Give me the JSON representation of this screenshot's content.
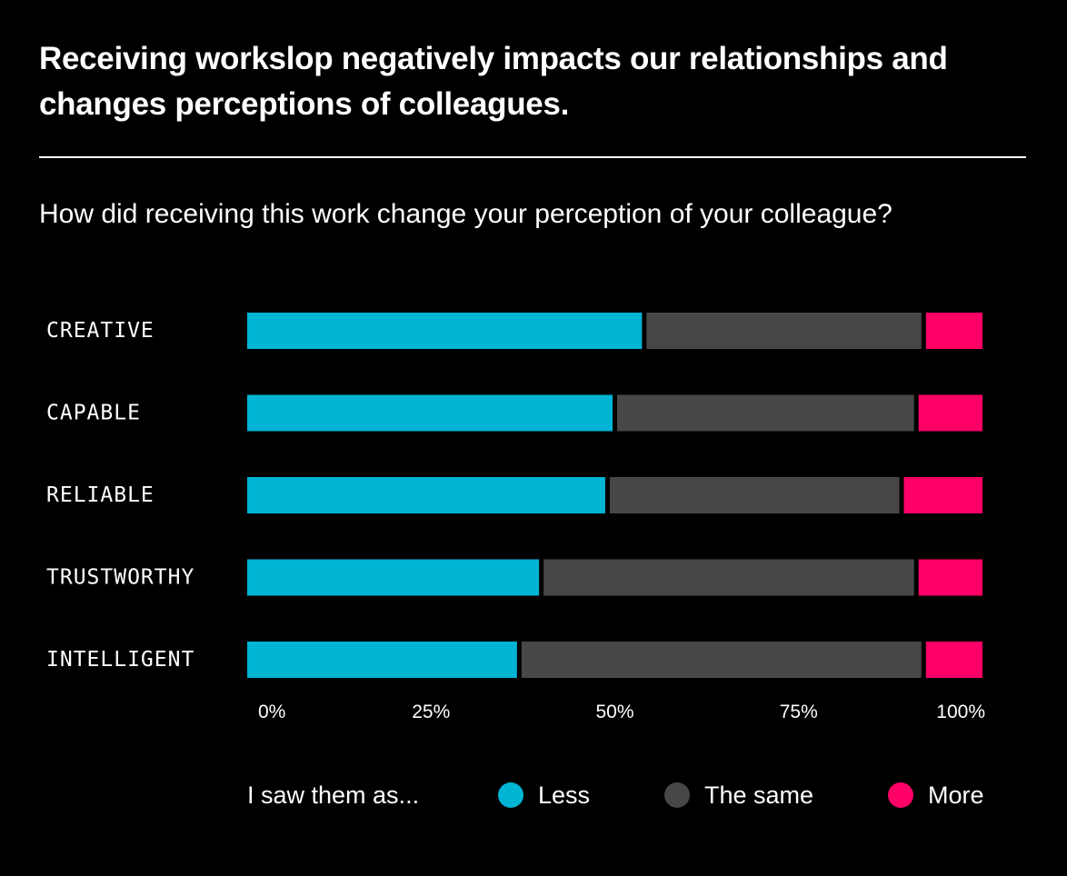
{
  "header": {
    "title": "Receiving workslop negatively impacts our relationships and changes perceptions of colleagues.",
    "subtitle": "How did receiving this work change your perception of your colleague?"
  },
  "legend": {
    "title": "I saw them as...",
    "items": [
      {
        "label": "Less",
        "color": "#00b4d4"
      },
      {
        "label": "The same",
        "color": "#474747"
      },
      {
        "label": "More",
        "color": "#ff0066"
      }
    ]
  },
  "chart_data": {
    "type": "bar",
    "orientation": "horizontal",
    "stacked": true,
    "title": "How did receiving this work change your perception of your colleague?",
    "xlabel": "",
    "ylabel": "",
    "xlim": [
      0,
      100
    ],
    "x_ticks": [
      0,
      25,
      50,
      75,
      100
    ],
    "x_tick_labels": [
      "0%",
      "25%",
      "50%",
      "75%",
      "100%"
    ],
    "categories": [
      "CREATIVE",
      "CAPABLE",
      "RELIABLE",
      "TRUSTWORTHY",
      "INTELLIGENT"
    ],
    "series": [
      {
        "name": "Less",
        "color": "#00b4d4",
        "values": [
          54,
          50,
          49,
          40,
          37
        ]
      },
      {
        "name": "The same",
        "color": "#474747",
        "values": [
          38,
          41,
          40,
          51,
          55
        ]
      },
      {
        "name": "More",
        "color": "#ff0066",
        "values": [
          8,
          9,
          11,
          9,
          8
        ]
      }
    ],
    "legend_position": "bottom",
    "grid": false
  }
}
